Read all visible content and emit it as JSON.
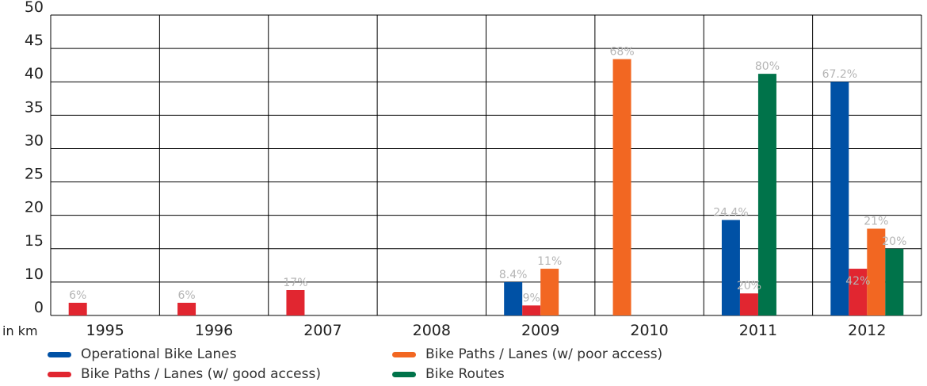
{
  "chart_data": {
    "type": "bar",
    "categories": [
      "1995",
      "1996",
      "2007",
      "2008",
      "2009",
      "2010",
      "2011",
      "2012"
    ],
    "y_unit_label": "in km",
    "ylim": [
      5,
      50
    ],
    "yticks": [
      0,
      10,
      15,
      20,
      25,
      30,
      35,
      40,
      45,
      50
    ],
    "grid": true,
    "legend_position": "bottom",
    "series": [
      {
        "name": "Operational Bike Lanes",
        "color": "#0051a5",
        "values": [
          null,
          null,
          null,
          null,
          10,
          null,
          19.3,
          40
        ],
        "labels": [
          null,
          null,
          null,
          null,
          "8.4%",
          null,
          "24.4%",
          "67.2%"
        ]
      },
      {
        "name": "Bike Paths / Lanes (w/ good access)",
        "color": "#e12630",
        "values": [
          6.9,
          6.9,
          8.8,
          null,
          6.5,
          null,
          8.3,
          12
        ],
        "labels": [
          "6%",
          "6%",
          "17%",
          null,
          "9%",
          null,
          "20%",
          "42%"
        ]
      },
      {
        "name": "Bike Paths / Lanes (w/ poor access)",
        "color": "#f26722",
        "values": [
          null,
          null,
          null,
          null,
          12,
          43.4,
          null,
          18
        ],
        "labels": [
          null,
          null,
          null,
          null,
          "11%",
          "68%",
          null,
          "21%"
        ]
      },
      {
        "name": "Bike Routes",
        "color": "#00734a",
        "values": [
          null,
          null,
          null,
          null,
          null,
          null,
          41.2,
          15
        ],
        "labels": [
          null,
          null,
          null,
          null,
          null,
          null,
          "80%",
          "20%"
        ]
      }
    ]
  }
}
